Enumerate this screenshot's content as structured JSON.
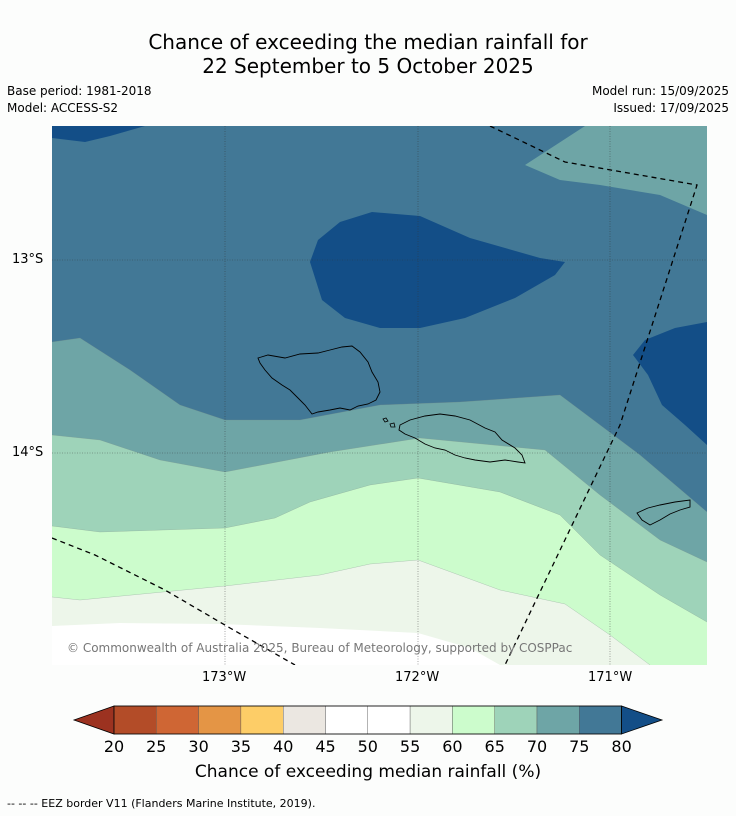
{
  "title_line1": "Chance of exceeding the median rainfall for",
  "title_line2": "22 September to 5 October 2025",
  "base_period": "Base period: 1981-2018",
  "model": "Model: ACCESS-S2",
  "model_run": "Model run: 15/09/2025",
  "issued": "Issued: 17/09/2025",
  "lat_labels": [
    "13°S",
    "14°S"
  ],
  "lon_labels": [
    "173°W",
    "172°W",
    "171°W"
  ],
  "copyright": "© Commonwealth of Australia 2025, Bureau of Meteorology, supported by COSPPac",
  "colorbar": {
    "label": "Chance of exceeding median rainfall (%)",
    "ticks": [
      "20",
      "25",
      "30",
      "35",
      "40",
      "45",
      "50",
      "55",
      "60",
      "65",
      "70",
      "75",
      "80"
    ],
    "colors": [
      "#9c3220",
      "#b34c28",
      "#cf6634",
      "#e49545",
      "#fdcd67",
      "#ebe7e1",
      "#ffffff",
      "#ffffff",
      "#edf6ea",
      "#ccfccc",
      "#9ed3b9",
      "#6ea5a6",
      "#427896",
      "#134e87"
    ]
  },
  "footer": "--  --  -- EEZ border V11 (Flanders Marine Institute, 2019)."
}
